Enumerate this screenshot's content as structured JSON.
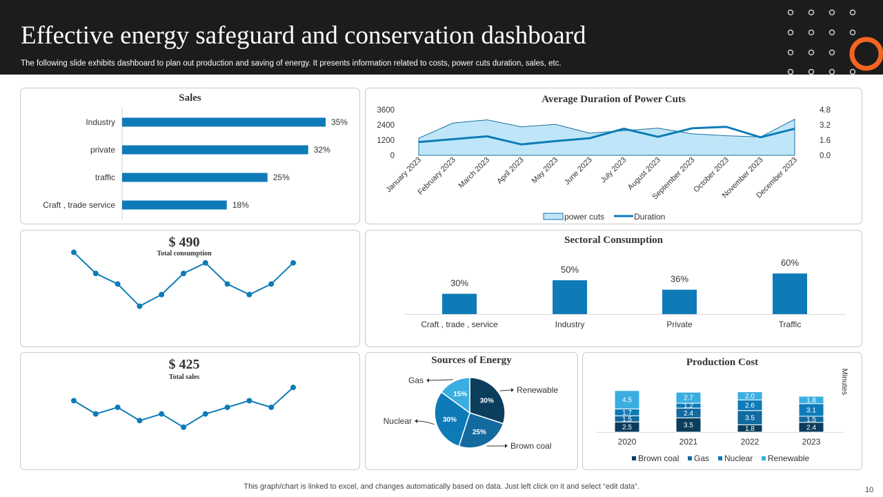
{
  "header": {
    "title": "Effective energy safeguard and conservation dashboard",
    "subtitle": "The following slide exhibits dashboard to plan out production and saving of energy.  It presents information related to costs, power cuts duration, sales, etc."
  },
  "colors": {
    "primary": "#0e7bb8",
    "dark_navy": "#0b3d5c",
    "mid_blue": "#136a9f",
    "light_blue": "#3aaee0",
    "area_fill": "#bfe6f8",
    "accent_orange": "#f26522"
  },
  "kpis": {
    "consumption": {
      "value": "$ 490",
      "label": "Total consumption"
    },
    "sales": {
      "value": "$ 425",
      "label": "Total sales"
    }
  },
  "footer": {
    "note": "This graph/chart is linked to excel,  and changes automatically based on data. Just left click on it and select “edit data”.",
    "page": "10"
  },
  "chart_data": [
    {
      "id": "sales",
      "type": "bar",
      "orientation": "horizontal",
      "title": "Sales",
      "categories": [
        "Industry",
        "private",
        "traffic",
        "Craft , trade service"
      ],
      "values": [
        35,
        32,
        25,
        18
      ],
      "labels": [
        "35%",
        "32%",
        "25%",
        "18%"
      ],
      "xlim": [
        0,
        40
      ]
    },
    {
      "id": "power_cuts",
      "type": "area",
      "title": "Average Duration  of Power  Cuts",
      "categories": [
        "January 2023",
        "February 2023",
        "March 2023",
        "April 2023",
        "May 2023",
        "June 2023",
        "July 2023",
        "August 2023",
        "September 2023",
        "October 2023",
        "November 2023",
        "December 2023"
      ],
      "series": [
        {
          "name": "power cuts",
          "axis": "left",
          "kind": "area",
          "values": [
            1350,
            2550,
            2800,
            2250,
            2450,
            1750,
            1950,
            2150,
            1700,
            1550,
            1450,
            2850
          ]
        },
        {
          "name": "Duration",
          "axis": "right",
          "kind": "line",
          "values": [
            1.4,
            1.7,
            2.0,
            1.15,
            1.5,
            1.8,
            2.8,
            1.95,
            2.85,
            3.0,
            1.9,
            2.8
          ]
        }
      ],
      "ylim_left": [
        0,
        3600
      ],
      "yticks_left": [
        "0",
        "1200",
        "2400",
        "3600"
      ],
      "ylim_right": [
        0,
        4.8
      ],
      "yticks_right": [
        "0.0",
        "1.6",
        "3.2",
        "4.8"
      ]
    },
    {
      "id": "consumption_trend",
      "type": "line",
      "title": "",
      "values": [
        8.2,
        6.2,
        5.2,
        3.1,
        4.2,
        6.2,
        7.2,
        5.2,
        4.2,
        5.2,
        7.2
      ],
      "ylim": [
        0,
        10
      ]
    },
    {
      "id": "sectoral",
      "type": "bar",
      "title": "Sectoral Consumption",
      "categories": [
        "Craft , trade , service",
        "Industry",
        "Private",
        "Traffic"
      ],
      "values": [
        30,
        50,
        36,
        60
      ],
      "labels": [
        "30%",
        "50%",
        "36%",
        "60%"
      ],
      "ylim": [
        0,
        70
      ]
    },
    {
      "id": "sales_trend",
      "type": "line",
      "title": "",
      "values": [
        6.2,
        4.2,
        5.2,
        3.2,
        4.2,
        2.2,
        4.2,
        5.2,
        6.2,
        5.2,
        8.2
      ],
      "ylim": [
        0,
        10
      ]
    },
    {
      "id": "sources",
      "type": "pie",
      "title": "Sources of Energy",
      "slices": [
        {
          "name": "Renewable",
          "value": 30,
          "label": "30%",
          "color": "#0b3d5c"
        },
        {
          "name": "Brown coal",
          "value": 25,
          "label": "25%",
          "color": "#136a9f"
        },
        {
          "name": "Nuclear",
          "value": 30,
          "label": "30%",
          "color": "#0e7bb8"
        },
        {
          "name": "Gas",
          "value": 15,
          "label": "15%",
          "color": "#3aaee0"
        }
      ]
    },
    {
      "id": "production",
      "type": "bar",
      "stacked": true,
      "title": "Production  Cost",
      "categories": [
        "2020",
        "2021",
        "2022",
        "2023"
      ],
      "series": [
        {
          "name": "Brown coal",
          "values": [
            2.5,
            3.5,
            1.8,
            2.4
          ],
          "labels": [
            "2.5",
            "3.5",
            "1.8",
            "2.4"
          ],
          "color": "#0b3d5c"
        },
        {
          "name": "Gas",
          "values": [
            1.5,
            2.4,
            3.5,
            1.5
          ],
          "labels": [
            "1.5",
            "2.4",
            "3.5",
            "1.5"
          ],
          "color": "#136a9f"
        },
        {
          "name": "Nuclear",
          "values": [
            1.7,
            1.2,
            2.6,
            3.1
          ],
          "labels": [
            "1.7",
            "1.2",
            "2.6",
            "3.1"
          ],
          "color": "#0e7bb8"
        },
        {
          "name": "Renewable",
          "values": [
            4.5,
            2.7,
            2.0,
            1.8
          ],
          "labels": [
            "4.5",
            "2.7",
            "2.0",
            "1.8"
          ],
          "color": "#3aaee0"
        }
      ],
      "ylabel": "Minutes",
      "ylim": [
        0,
        12
      ]
    }
  ]
}
